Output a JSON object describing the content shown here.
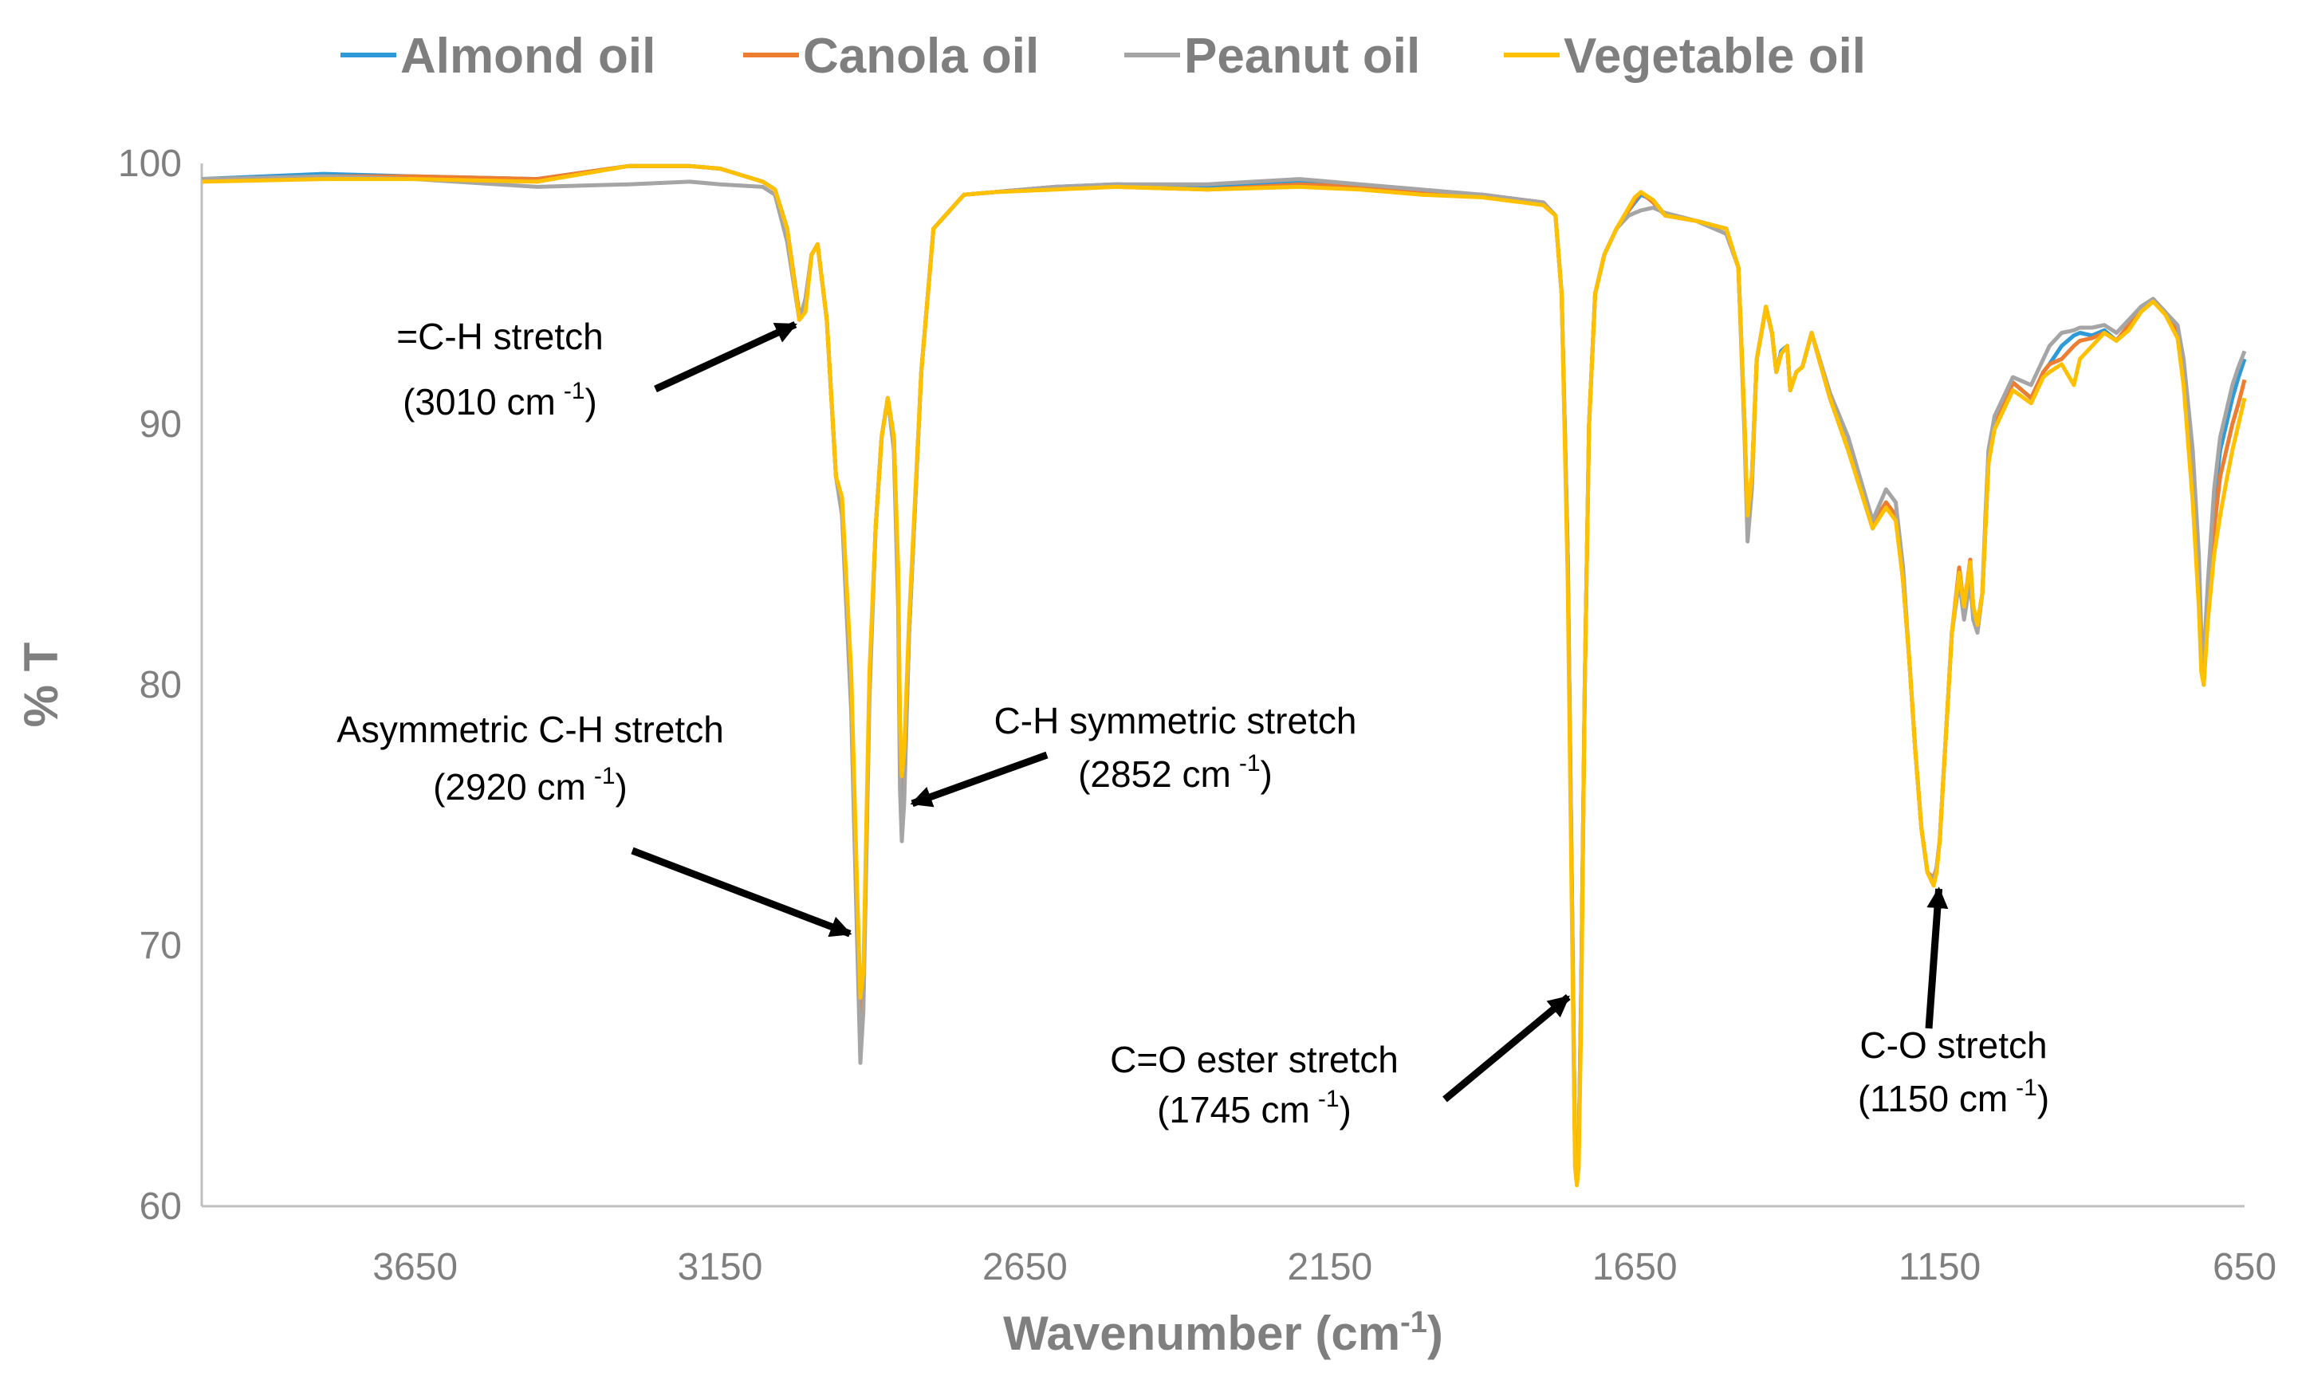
{
  "chart_data": {
    "type": "line",
    "xlabel": "Wavenumber (cm",
    "xlabel_sup": "-1",
    "xlabel_close": ")",
    "ylabel": "% T",
    "xlim": [
      4000,
      650
    ],
    "ylim": [
      60,
      100
    ],
    "x_ticks": [
      3650,
      3150,
      2650,
      2150,
      1650,
      1150,
      650
    ],
    "y_ticks": [
      60,
      70,
      80,
      90,
      100
    ],
    "grid": false,
    "legend_position": "top",
    "series": [
      {
        "name": "Almond oil",
        "color": "#2e9ad7",
        "x": [
          4000,
          3800,
          3650,
          3450,
          3300,
          3200,
          3150,
          3080,
          3060,
          3040,
          3020,
          3010,
          3000,
          2990,
          2975,
          2960,
          2950,
          2935,
          2925,
          2920,
          2915,
          2905,
          2895,
          2885,
          2875,
          2865,
          2858,
          2855,
          2852,
          2848,
          2840,
          2820,
          2800,
          2750,
          2700,
          2600,
          2500,
          2350,
          2200,
          2100,
          2000,
          1900,
          1800,
          1780,
          1770,
          1760,
          1752,
          1748,
          1745,
          1742,
          1738,
          1732,
          1725,
          1715,
          1700,
          1680,
          1660,
          1650,
          1640,
          1620,
          1600,
          1550,
          1500,
          1480,
          1470,
          1465,
          1458,
          1450,
          1440,
          1435,
          1425,
          1418,
          1410,
          1400,
          1395,
          1385,
          1375,
          1360,
          1330,
          1300,
          1260,
          1238,
          1222,
          1210,
          1200,
          1190,
          1180,
          1170,
          1160,
          1155,
          1150,
          1145,
          1140,
          1130,
          1118,
          1110,
          1100,
          1095,
          1088,
          1080,
          1075,
          1070,
          1060,
          1040,
          1030,
          1000,
          980,
          970,
          950,
          930,
          920,
          900,
          880,
          860,
          840,
          820,
          800,
          780,
          760,
          750,
          735,
          725,
          721,
          717,
          710,
          700,
          690,
          680,
          670,
          660,
          650
        ],
        "y": [
          99.4,
          99.6,
          99.5,
          99.4,
          99.9,
          99.9,
          99.8,
          99.3,
          99.0,
          97.5,
          94.0,
          94.5,
          96.5,
          96.9,
          94.0,
          88.0,
          87.0,
          80.0,
          71.0,
          66.0,
          68.0,
          80.0,
          86.0,
          89.5,
          91.0,
          89.5,
          84.0,
          78.0,
          74.5,
          76.0,
          82.0,
          92.0,
          97.5,
          98.8,
          98.9,
          99.1,
          99.2,
          99.1,
          99.3,
          99.1,
          98.9,
          98.8,
          98.5,
          98.0,
          95.0,
          85.0,
          70.0,
          62.0,
          61.0,
          62.0,
          68.0,
          80.0,
          90.0,
          95.0,
          96.5,
          97.5,
          98.2,
          98.5,
          98.8,
          98.6,
          98.0,
          97.8,
          97.5,
          96.0,
          90.0,
          86.0,
          88.0,
          92.5,
          93.8,
          94.5,
          93.5,
          92.0,
          92.8,
          93.0,
          91.3,
          92.0,
          92.2,
          93.5,
          91.0,
          89.0,
          86.0,
          87.0,
          86.5,
          84.0,
          81.0,
          77.5,
          74.5,
          72.8,
          72.5,
          73.0,
          74.0,
          76.0,
          78.0,
          82.0,
          84.0,
          83.0,
          84.5,
          83.0,
          82.3,
          83.5,
          86.0,
          88.5,
          90.0,
          91.0,
          91.6,
          91.0,
          92.0,
          92.3,
          93.0,
          93.4,
          93.5,
          93.4,
          93.6,
          93.2,
          93.8,
          94.5,
          94.8,
          94.3,
          93.5,
          92.0,
          88.0,
          84.0,
          81.0,
          80.0,
          83.0,
          87.0,
          89.0,
          90.0,
          91.0,
          91.8,
          92.5
        ]
      },
      {
        "name": "Canola oil",
        "color": "#ed7d31",
        "x": [
          4000,
          3800,
          3650,
          3450,
          3300,
          3200,
          3150,
          3080,
          3060,
          3040,
          3020,
          3010,
          3000,
          2990,
          2975,
          2960,
          2950,
          2935,
          2925,
          2920,
          2915,
          2905,
          2895,
          2885,
          2875,
          2865,
          2858,
          2855,
          2852,
          2848,
          2840,
          2820,
          2800,
          2750,
          2700,
          2600,
          2500,
          2350,
          2200,
          2100,
          2000,
          1900,
          1800,
          1780,
          1770,
          1760,
          1752,
          1748,
          1745,
          1742,
          1738,
          1732,
          1725,
          1715,
          1700,
          1680,
          1660,
          1650,
          1640,
          1620,
          1600,
          1550,
          1500,
          1480,
          1470,
          1465,
          1458,
          1450,
          1440,
          1435,
          1425,
          1418,
          1410,
          1400,
          1395,
          1385,
          1375,
          1360,
          1330,
          1300,
          1260,
          1238,
          1222,
          1210,
          1200,
          1190,
          1180,
          1170,
          1160,
          1155,
          1150,
          1145,
          1140,
          1130,
          1118,
          1110,
          1100,
          1095,
          1088,
          1080,
          1075,
          1070,
          1060,
          1040,
          1030,
          1000,
          980,
          970,
          950,
          930,
          920,
          900,
          880,
          860,
          840,
          820,
          800,
          780,
          760,
          750,
          735,
          725,
          721,
          717,
          710,
          700,
          690,
          680,
          670,
          660,
          650
        ],
        "y": [
          99.4,
          99.5,
          99.5,
          99.4,
          99.9,
          99.9,
          99.8,
          99.3,
          99.0,
          97.5,
          94.2,
          94.6,
          96.5,
          96.9,
          94.0,
          88.0,
          87.0,
          80.0,
          71.5,
          67.0,
          68.5,
          80.0,
          86.0,
          89.5,
          91.0,
          89.5,
          84.0,
          78.0,
          75.0,
          76.5,
          82.0,
          92.0,
          97.5,
          98.8,
          98.9,
          99.1,
          99.1,
          99.0,
          99.2,
          99.1,
          98.9,
          98.8,
          98.5,
          98.0,
          95.0,
          85.0,
          70.0,
          62.0,
          61.0,
          62.0,
          68.0,
          80.0,
          90.0,
          95.0,
          96.5,
          97.5,
          98.2,
          98.6,
          98.9,
          98.5,
          98.0,
          97.8,
          97.5,
          96.0,
          90.0,
          86.3,
          88.0,
          92.5,
          93.8,
          94.5,
          93.5,
          92.0,
          92.7,
          93.0,
          91.3,
          92.0,
          92.2,
          93.5,
          91.0,
          89.0,
          86.2,
          87.0,
          86.5,
          84.0,
          81.0,
          77.5,
          74.5,
          72.8,
          72.6,
          73.0,
          74.0,
          76.0,
          78.0,
          82.0,
          84.5,
          83.0,
          84.8,
          83.0,
          82.3,
          83.5,
          86.0,
          88.5,
          90.0,
          91.0,
          91.6,
          91.0,
          92.0,
          92.3,
          92.5,
          93.0,
          93.2,
          93.3,
          93.5,
          93.2,
          93.8,
          94.5,
          94.8,
          94.3,
          93.5,
          92.0,
          88.0,
          84.0,
          81.0,
          80.5,
          83.0,
          86.0,
          88.0,
          89.0,
          90.0,
          90.8,
          91.7
        ]
      },
      {
        "name": "Peanut oil",
        "color": "#a5a5a5",
        "x": [
          4000,
          3800,
          3650,
          3450,
          3300,
          3200,
          3150,
          3080,
          3060,
          3040,
          3020,
          3010,
          3000,
          2990,
          2975,
          2960,
          2950,
          2935,
          2925,
          2920,
          2915,
          2905,
          2895,
          2885,
          2875,
          2865,
          2858,
          2855,
          2852,
          2848,
          2840,
          2820,
          2800,
          2750,
          2700,
          2600,
          2500,
          2350,
          2200,
          2100,
          2000,
          1900,
          1800,
          1780,
          1770,
          1760,
          1752,
          1748,
          1745,
          1742,
          1738,
          1732,
          1725,
          1715,
          1700,
          1680,
          1660,
          1650,
          1640,
          1620,
          1600,
          1550,
          1500,
          1480,
          1470,
          1465,
          1458,
          1450,
          1440,
          1435,
          1425,
          1418,
          1410,
          1400,
          1395,
          1385,
          1375,
          1360,
          1330,
          1300,
          1260,
          1238,
          1222,
          1210,
          1200,
          1190,
          1180,
          1170,
          1160,
          1155,
          1150,
          1145,
          1140,
          1130,
          1118,
          1110,
          1100,
          1095,
          1088,
          1080,
          1075,
          1070,
          1060,
          1040,
          1030,
          1000,
          980,
          970,
          950,
          930,
          920,
          900,
          880,
          860,
          840,
          820,
          800,
          780,
          760,
          750,
          735,
          725,
          721,
          717,
          710,
          700,
          690,
          680,
          670,
          660,
          650
        ],
        "y": [
          99.4,
          99.5,
          99.4,
          99.1,
          99.2,
          99.3,
          99.2,
          99.1,
          98.8,
          97.0,
          94.0,
          94.8,
          96.5,
          96.9,
          94.0,
          88.0,
          86.5,
          79.0,
          70.0,
          65.5,
          67.5,
          79.5,
          86.0,
          89.5,
          91.0,
          89.0,
          83.0,
          76.0,
          74.0,
          75.5,
          82.0,
          92.0,
          97.5,
          98.8,
          98.9,
          99.1,
          99.2,
          99.2,
          99.4,
          99.2,
          99.0,
          98.8,
          98.5,
          98.0,
          95.0,
          85.0,
          70.0,
          62.0,
          61.0,
          62.0,
          68.0,
          80.0,
          90.0,
          95.0,
          96.5,
          97.5,
          98.0,
          98.1,
          98.2,
          98.3,
          98.1,
          97.8,
          97.3,
          96.0,
          89.5,
          85.5,
          87.5,
          92.5,
          93.8,
          94.5,
          93.5,
          92.0,
          92.7,
          93.0,
          91.3,
          92.0,
          92.2,
          93.5,
          91.2,
          89.5,
          86.3,
          87.5,
          87.0,
          84.5,
          81.0,
          77.5,
          74.5,
          72.8,
          72.5,
          73.0,
          74.0,
          76.0,
          78.0,
          82.0,
          84.0,
          82.5,
          84.0,
          82.5,
          82.0,
          83.5,
          86.5,
          89.0,
          90.3,
          91.3,
          91.8,
          91.5,
          92.5,
          93.0,
          93.5,
          93.6,
          93.7,
          93.7,
          93.8,
          93.5,
          94.0,
          94.5,
          94.8,
          94.3,
          93.8,
          92.5,
          89.0,
          85.0,
          82.0,
          81.0,
          84.0,
          87.5,
          89.5,
          90.5,
          91.5,
          92.2,
          92.8
        ]
      },
      {
        "name": "Vegetable oil",
        "color": "#ffc000",
        "x": [
          4000,
          3800,
          3650,
          3450,
          3300,
          3200,
          3150,
          3080,
          3060,
          3040,
          3020,
          3010,
          3000,
          2990,
          2975,
          2960,
          2950,
          2935,
          2925,
          2920,
          2915,
          2905,
          2895,
          2885,
          2875,
          2865,
          2858,
          2855,
          2852,
          2848,
          2840,
          2820,
          2800,
          2750,
          2700,
          2600,
          2500,
          2350,
          2200,
          2100,
          2000,
          1900,
          1800,
          1780,
          1770,
          1760,
          1752,
          1748,
          1745,
          1742,
          1738,
          1732,
          1725,
          1715,
          1700,
          1680,
          1660,
          1650,
          1640,
          1620,
          1600,
          1550,
          1500,
          1480,
          1470,
          1465,
          1458,
          1450,
          1440,
          1435,
          1425,
          1418,
          1410,
          1400,
          1395,
          1385,
          1375,
          1360,
          1330,
          1300,
          1260,
          1238,
          1222,
          1210,
          1200,
          1190,
          1180,
          1170,
          1160,
          1155,
          1150,
          1145,
          1140,
          1130,
          1118,
          1110,
          1100,
          1095,
          1088,
          1080,
          1075,
          1070,
          1060,
          1040,
          1030,
          1000,
          980,
          970,
          950,
          930,
          920,
          900,
          880,
          860,
          840,
          820,
          800,
          780,
          760,
          750,
          735,
          725,
          721,
          717,
          710,
          700,
          690,
          680,
          670,
          660,
          650
        ],
        "y": [
          99.3,
          99.4,
          99.4,
          99.3,
          99.9,
          99.9,
          99.8,
          99.3,
          99.0,
          97.5,
          94.0,
          94.3,
          96.5,
          96.9,
          94.0,
          88.0,
          87.2,
          80.5,
          72.0,
          68.0,
          69.0,
          80.5,
          86.0,
          89.5,
          91.0,
          89.5,
          84.5,
          78.5,
          76.5,
          77.5,
          82.5,
          92.0,
          97.5,
          98.8,
          98.9,
          99.0,
          99.1,
          99.0,
          99.1,
          99.0,
          98.8,
          98.7,
          98.4,
          98.0,
          95.0,
          84.0,
          69.0,
          61.5,
          60.8,
          61.5,
          67.0,
          80.0,
          90.0,
          95.0,
          96.5,
          97.5,
          98.3,
          98.7,
          98.9,
          98.6,
          98.0,
          97.8,
          97.5,
          96.0,
          90.0,
          86.5,
          88.0,
          92.5,
          93.8,
          94.5,
          93.5,
          92.0,
          92.7,
          93.0,
          91.3,
          92.0,
          92.2,
          93.5,
          91.0,
          89.0,
          86.0,
          86.8,
          86.3,
          84.0,
          81.0,
          77.5,
          74.5,
          72.8,
          72.3,
          72.8,
          74.0,
          76.0,
          78.0,
          82.0,
          84.3,
          83.0,
          84.7,
          83.0,
          82.3,
          83.5,
          86.0,
          88.5,
          89.8,
          90.8,
          91.3,
          90.8,
          91.8,
          92.0,
          92.3,
          91.5,
          92.5,
          93.0,
          93.5,
          93.2,
          93.6,
          94.3,
          94.7,
          94.2,
          93.3,
          91.5,
          87.0,
          83.0,
          80.5,
          80.0,
          82.5,
          85.0,
          86.5,
          87.8,
          89.0,
          90.0,
          91.0
        ]
      }
    ],
    "annotations": [
      {
        "id": "ch-stretch",
        "line1": "=C-H stretch",
        "line2_pre": "(3010 cm",
        "line2_sup": "-1",
        "line2_post": ")",
        "target_x": 3010,
        "target_y": 94.0
      },
      {
        "id": "asym-ch",
        "line1": "Asymmetric C-H stretch",
        "line2_pre": "(2920 cm",
        "line2_sup": "-1",
        "line2_post": ")",
        "target_x": 2920,
        "target_y": 70.3
      },
      {
        "id": "sym-ch",
        "line1": "C-H symmetric stretch",
        "line2_pre": "(2852 cm",
        "line2_sup": "-1",
        "line2_post": ")",
        "target_x": 2852,
        "target_y": 75.3
      },
      {
        "id": "co-ester",
        "line1": "C=O ester stretch",
        "line2_pre": "(1745 cm",
        "line2_sup": "-1",
        "line2_post": ")",
        "target_x": 1745,
        "target_y": 68.3
      },
      {
        "id": "c-o",
        "line1": "C-O stretch",
        "line2_pre": "(1150 cm",
        "line2_sup": "-1",
        "line2_post": ")",
        "target_x": 1150,
        "target_y": 72.6
      }
    ]
  }
}
